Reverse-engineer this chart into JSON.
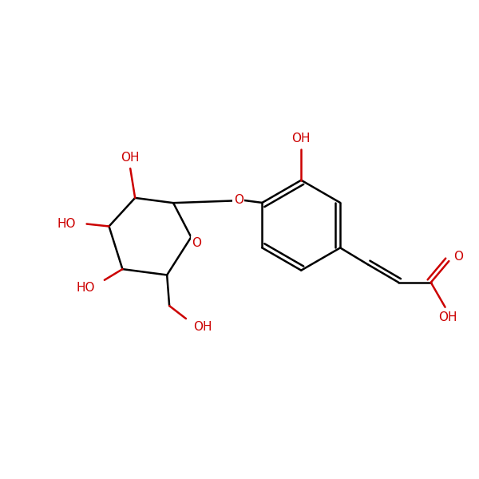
{
  "background_color": "#ffffff",
  "bond_color": "#000000",
  "heteroatom_color": "#cc0000",
  "font_size": 11,
  "line_width": 1.8,
  "figsize": [
    6.0,
    6.0
  ],
  "dpi": 100,
  "xlim": [
    0,
    10
  ],
  "ylim": [
    0,
    10
  ]
}
